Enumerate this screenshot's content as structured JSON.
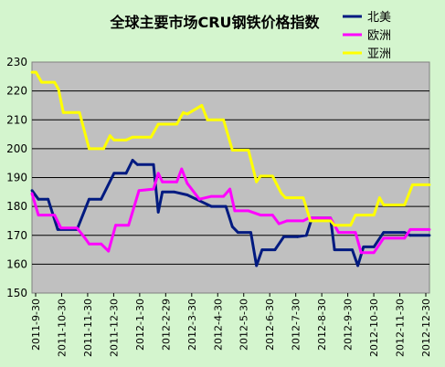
{
  "chart_data": {
    "type": "line",
    "title": "全球主要市场CRU钢铁价格指数",
    "xlabel": "",
    "ylabel": "",
    "ylim": [
      150,
      230
    ],
    "yticks": [
      150,
      160,
      170,
      180,
      190,
      200,
      210,
      220,
      230
    ],
    "grid": true,
    "legend_position": "top-right",
    "x_tick_labels": [
      "2011-9-30",
      "2011-10-30",
      "2011-11-30",
      "2011-12-30",
      "2012-1-30",
      "2012-2-29",
      "2012-3-30",
      "2012-4-30",
      "2012-5-30",
      "2012-6-30",
      "2012-7-30",
      "2012-8-30",
      "2012-9-30",
      "2012-10-30",
      "2012-11-30",
      "2012-12-30"
    ],
    "series": [
      {
        "name": "北美",
        "color": "#001a80",
        "points": [
          [
            "2011-09-30",
            185.5
          ],
          [
            "2011-10-08",
            182.5
          ],
          [
            "2011-10-20",
            182.5
          ],
          [
            "2011-11-01",
            172
          ],
          [
            "2011-11-25",
            172
          ],
          [
            "2011-12-10",
            182.5
          ],
          [
            "2011-12-25",
            182.5
          ],
          [
            "2012-01-10",
            191.5
          ],
          [
            "2012-01-25",
            191.5
          ],
          [
            "2012-02-02",
            196
          ],
          [
            "2012-02-08",
            194.5
          ],
          [
            "2012-02-28",
            194.5
          ],
          [
            "2012-03-05",
            178
          ],
          [
            "2012-03-10",
            185
          ],
          [
            "2012-03-25",
            185
          ],
          [
            "2012-04-10",
            184
          ],
          [
            "2012-04-25",
            182
          ],
          [
            "2012-05-10",
            180
          ],
          [
            "2012-05-28",
            180
          ],
          [
            "2012-06-05",
            173
          ],
          [
            "2012-06-12",
            171
          ],
          [
            "2012-06-28",
            171
          ],
          [
            "2012-07-05",
            159.5
          ],
          [
            "2012-07-12",
            165
          ],
          [
            "2012-07-28",
            165
          ],
          [
            "2012-08-08",
            169.5
          ],
          [
            "2012-08-25",
            169.5
          ],
          [
            "2012-09-05",
            170
          ],
          [
            "2012-09-12",
            176
          ],
          [
            "2012-10-05",
            176
          ],
          [
            "2012-10-10",
            165
          ],
          [
            "2012-11-01",
            165
          ],
          [
            "2012-11-08",
            159.5
          ],
          [
            "2012-11-15",
            166
          ],
          [
            "2012-11-28",
            166
          ],
          [
            "2012-12-10",
            171
          ],
          [
            "2013-01-05",
            171
          ],
          [
            "2013-01-12",
            170
          ],
          [
            "2013-02-05",
            170
          ]
        ]
      },
      {
        "name": "欧洲",
        "color": "#ff00ff",
        "points": [
          [
            "2011-09-30",
            184.5
          ],
          [
            "2011-10-08",
            177
          ],
          [
            "2011-10-28",
            177
          ],
          [
            "2011-11-05",
            172.5
          ],
          [
            "2011-11-25",
            172.5
          ],
          [
            "2011-12-05",
            169
          ],
          [
            "2011-12-10",
            167
          ],
          [
            "2011-12-25",
            167
          ],
          [
            "2012-01-03",
            164.5
          ],
          [
            "2012-01-12",
            173.5
          ],
          [
            "2012-01-28",
            173.5
          ],
          [
            "2012-02-10",
            185.5
          ],
          [
            "2012-02-28",
            186
          ],
          [
            "2012-03-05",
            191.5
          ],
          [
            "2012-03-10",
            188.5
          ],
          [
            "2012-03-28",
            188.5
          ],
          [
            "2012-04-03",
            193
          ],
          [
            "2012-04-10",
            188
          ],
          [
            "2012-04-25",
            182.5
          ],
          [
            "2012-05-10",
            183.5
          ],
          [
            "2012-05-25",
            183.5
          ],
          [
            "2012-06-02",
            186
          ],
          [
            "2012-06-08",
            178.5
          ],
          [
            "2012-06-25",
            178.5
          ],
          [
            "2012-07-10",
            177
          ],
          [
            "2012-07-25",
            177
          ],
          [
            "2012-08-02",
            174
          ],
          [
            "2012-08-12",
            175
          ],
          [
            "2012-09-01",
            175
          ],
          [
            "2012-09-08",
            176
          ],
          [
            "2012-10-05",
            176
          ],
          [
            "2012-10-15",
            171
          ],
          [
            "2012-11-05",
            171
          ],
          [
            "2012-11-12",
            164
          ],
          [
            "2012-11-28",
            164
          ],
          [
            "2012-12-10",
            169
          ],
          [
            "2013-01-05",
            169
          ],
          [
            "2013-01-12",
            172
          ],
          [
            "2013-02-05",
            172
          ]
        ]
      },
      {
        "name": "亚洲",
        "color": "#ffff00",
        "points": [
          [
            "2011-09-30",
            226.5
          ],
          [
            "2011-10-05",
            226.5
          ],
          [
            "2011-10-12",
            223
          ],
          [
            "2011-10-28",
            223
          ],
          [
            "2011-11-02",
            220.5
          ],
          [
            "2011-11-08",
            212.5
          ],
          [
            "2011-11-28",
            212.5
          ],
          [
            "2011-12-10",
            200
          ],
          [
            "2011-12-28",
            200
          ],
          [
            "2012-01-05",
            204.5
          ],
          [
            "2012-01-10",
            203
          ],
          [
            "2012-01-25",
            203
          ],
          [
            "2012-02-02",
            204
          ],
          [
            "2012-02-25",
            204
          ],
          [
            "2012-03-05",
            208.5
          ],
          [
            "2012-03-28",
            208.5
          ],
          [
            "2012-04-05",
            212.5
          ],
          [
            "2012-04-10",
            212
          ],
          [
            "2012-04-28",
            215
          ],
          [
            "2012-05-05",
            210
          ],
          [
            "2012-05-25",
            210
          ],
          [
            "2012-06-05",
            199.5
          ],
          [
            "2012-06-25",
            199.5
          ],
          [
            "2012-07-05",
            188.5
          ],
          [
            "2012-07-10",
            190.5
          ],
          [
            "2012-07-25",
            190.5
          ],
          [
            "2012-08-05",
            184.5
          ],
          [
            "2012-08-10",
            183
          ],
          [
            "2012-09-01",
            183
          ],
          [
            "2012-09-10",
            175
          ],
          [
            "2012-10-05",
            175
          ],
          [
            "2012-10-10",
            173.5
          ],
          [
            "2012-10-30",
            173.5
          ],
          [
            "2012-11-05",
            177
          ],
          [
            "2012-11-28",
            177
          ],
          [
            "2012-12-05",
            183
          ],
          [
            "2012-12-10",
            180.5
          ],
          [
            "2013-01-05",
            180.5
          ],
          [
            "2013-01-15",
            187.5
          ],
          [
            "2013-02-05",
            187.5
          ]
        ]
      }
    ]
  }
}
